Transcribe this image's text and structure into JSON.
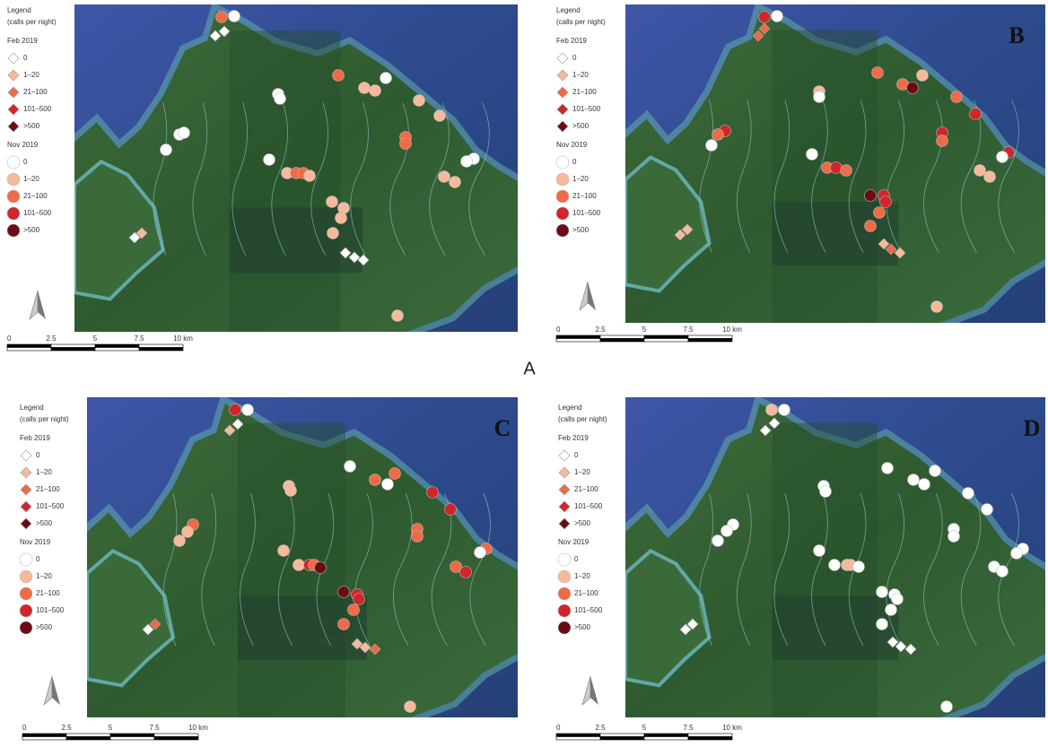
{
  "figure_label": "A",
  "panels": [
    {
      "legend": {
        "title": "Legend",
        "subtitle": "(calls per night)",
        "groups": [
          {
            "name": "Feb 2019",
            "classes": [
              "0",
              "1–20",
              "21–100",
              "101–500",
              ">500"
            ]
          },
          {
            "name": "Nov 2019",
            "classes": [
              "0",
              "1–20",
              "21–100",
              "101–500",
              ">500"
            ]
          }
        ]
      },
      "scale_labels": [
        "0",
        "2.5",
        "5",
        "7.5",
        "10 km"
      ]
    },
    {
      "letter": "B",
      "legend": {
        "title": "Legend",
        "subtitle": "(calls per night)",
        "groups": [
          {
            "name": "Feb 2019",
            "classes": [
              "0",
              "1–20",
              "21–100",
              "101–500",
              ">500"
            ]
          },
          {
            "name": "Nov 2019",
            "classes": [
              "0",
              "1–20",
              "21–100",
              "101–500",
              ">500"
            ]
          }
        ]
      },
      "scale_labels": [
        "0",
        "2.5",
        "5",
        "7.5",
        "10 km"
      ]
    },
    {
      "letter": "C",
      "legend": {
        "title": "Legend",
        "subtitle": "(calls per night)",
        "groups": [
          {
            "name": "Feb 2019",
            "classes": [
              "0",
              "1–20",
              "21–100",
              "101–500",
              ">500"
            ]
          },
          {
            "name": "Nov 2019",
            "classes": [
              "0",
              "1–20",
              "21–100",
              "101–500",
              ">500"
            ]
          }
        ]
      },
      "scale_labels": [
        "0",
        "2.5",
        "5",
        "7.5",
        "10 km"
      ]
    },
    {
      "letter": "D",
      "legend": {
        "title": "Legend",
        "subtitle": "(calls per night)",
        "groups": [
          {
            "name": "Feb 2019",
            "classes": [
              "0",
              "1–20",
              "21–100",
              "101–500",
              ">500"
            ]
          },
          {
            "name": "Nov 2019",
            "classes": [
              "0",
              "1–20",
              "21–100",
              "101–500",
              ">500"
            ]
          }
        ]
      },
      "scale_labels": [
        "0",
        "2.5",
        "5",
        "7.5",
        "10 km"
      ]
    }
  ]
}
